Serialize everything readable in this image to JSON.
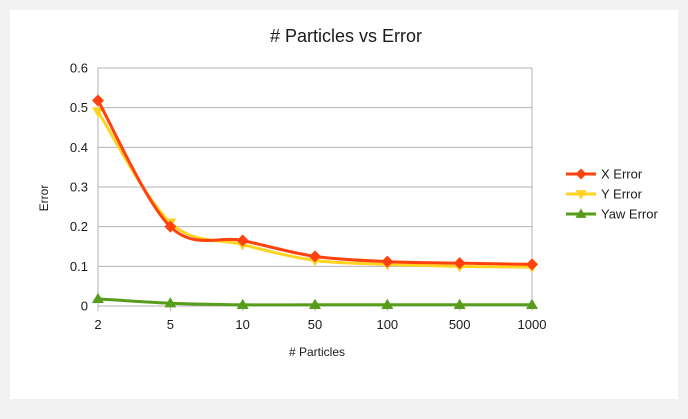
{
  "chart_data": {
    "type": "line",
    "title": "# Particles vs Error",
    "xlabel": "# Particles",
    "ylabel": "Error",
    "categories": [
      "2",
      "5",
      "10",
      "50",
      "100",
      "500",
      "1000"
    ],
    "ylim": [
      0,
      0.6
    ],
    "yticks": [
      "0",
      "0.1",
      "0.2",
      "0.3",
      "0.4",
      "0.5",
      "0.6"
    ],
    "grid": true,
    "legend": "right",
    "series": [
      {
        "name": "X Error",
        "color": "#ff420e",
        "marker": "diamond",
        "values": [
          0.518,
          0.2,
          0.165,
          0.125,
          0.112,
          0.108,
          0.105
        ]
      },
      {
        "name": "Y Error",
        "color": "#ffd320",
        "marker": "triangle-down",
        "values": [
          0.49,
          0.21,
          0.155,
          0.115,
          0.105,
          0.1,
          0.098
        ]
      },
      {
        "name": "Yaw Error",
        "color": "#579d1c",
        "marker": "triangle-up",
        "values": [
          0.018,
          0.007,
          0.003,
          0.003,
          0.003,
          0.003,
          0.003
        ]
      }
    ]
  }
}
